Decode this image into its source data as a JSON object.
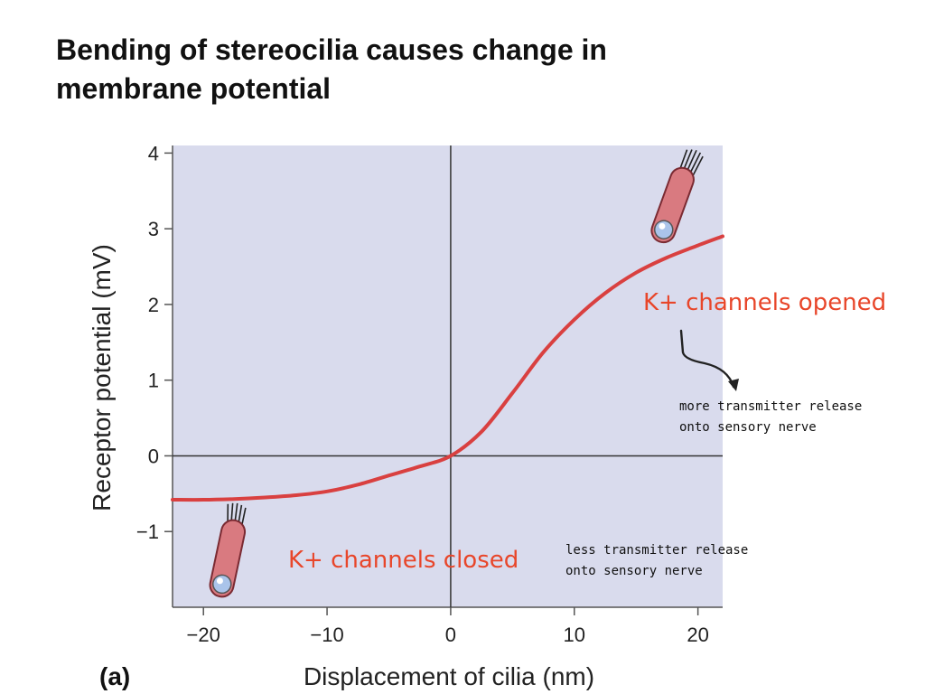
{
  "slide": {
    "title": "Bending of stereocilia causes change in membrane potential"
  },
  "colors": {
    "plot_background": "#d9dbed",
    "curve": "#d94040",
    "annotation_text": "#e8462a",
    "cell_body": "#d97a80",
    "cell_outline": "#7a2a32"
  },
  "chart_data": {
    "type": "line",
    "title": "",
    "xlabel": "Displacement of cilia (nm)",
    "ylabel": "Receptor potential (mV)",
    "panel_label": "(a)",
    "xlim": [
      -22.5,
      22
    ],
    "ylim": [
      -2,
      4.1
    ],
    "x_ticks": [
      -20,
      -10,
      0,
      10,
      20
    ],
    "x_tick_labels": [
      "−20",
      "−10",
      "0",
      "10",
      "20"
    ],
    "y_ticks": [
      -1,
      0,
      1,
      2,
      3,
      4
    ],
    "y_tick_labels": [
      "−1",
      "0",
      "1",
      "2",
      "3",
      "4"
    ],
    "grid": false,
    "zero_lines": true,
    "series": [
      {
        "x": [
          -22.5,
          -20,
          -17.5,
          -15,
          -12.5,
          -10,
          -7.5,
          -5,
          -2.5,
          0,
          2.5,
          5,
          7.5,
          10,
          12.5,
          15,
          17.5,
          20,
          22
        ],
        "y": [
          -0.58,
          -0.58,
          -0.57,
          -0.55,
          -0.52,
          -0.47,
          -0.38,
          -0.26,
          -0.14,
          0.0,
          0.32,
          0.83,
          1.37,
          1.8,
          2.15,
          2.42,
          2.62,
          2.78,
          2.9
        ]
      }
    ],
    "annotations": {
      "opened": {
        "label": "K+ channels opened",
        "note_line1": "more transmitter release",
        "note_line2": "onto sensory nerve"
      },
      "closed": {
        "label": "K+ channels closed",
        "note_line1": "less transmitter release",
        "note_line2": "onto sensory nerve"
      }
    }
  }
}
